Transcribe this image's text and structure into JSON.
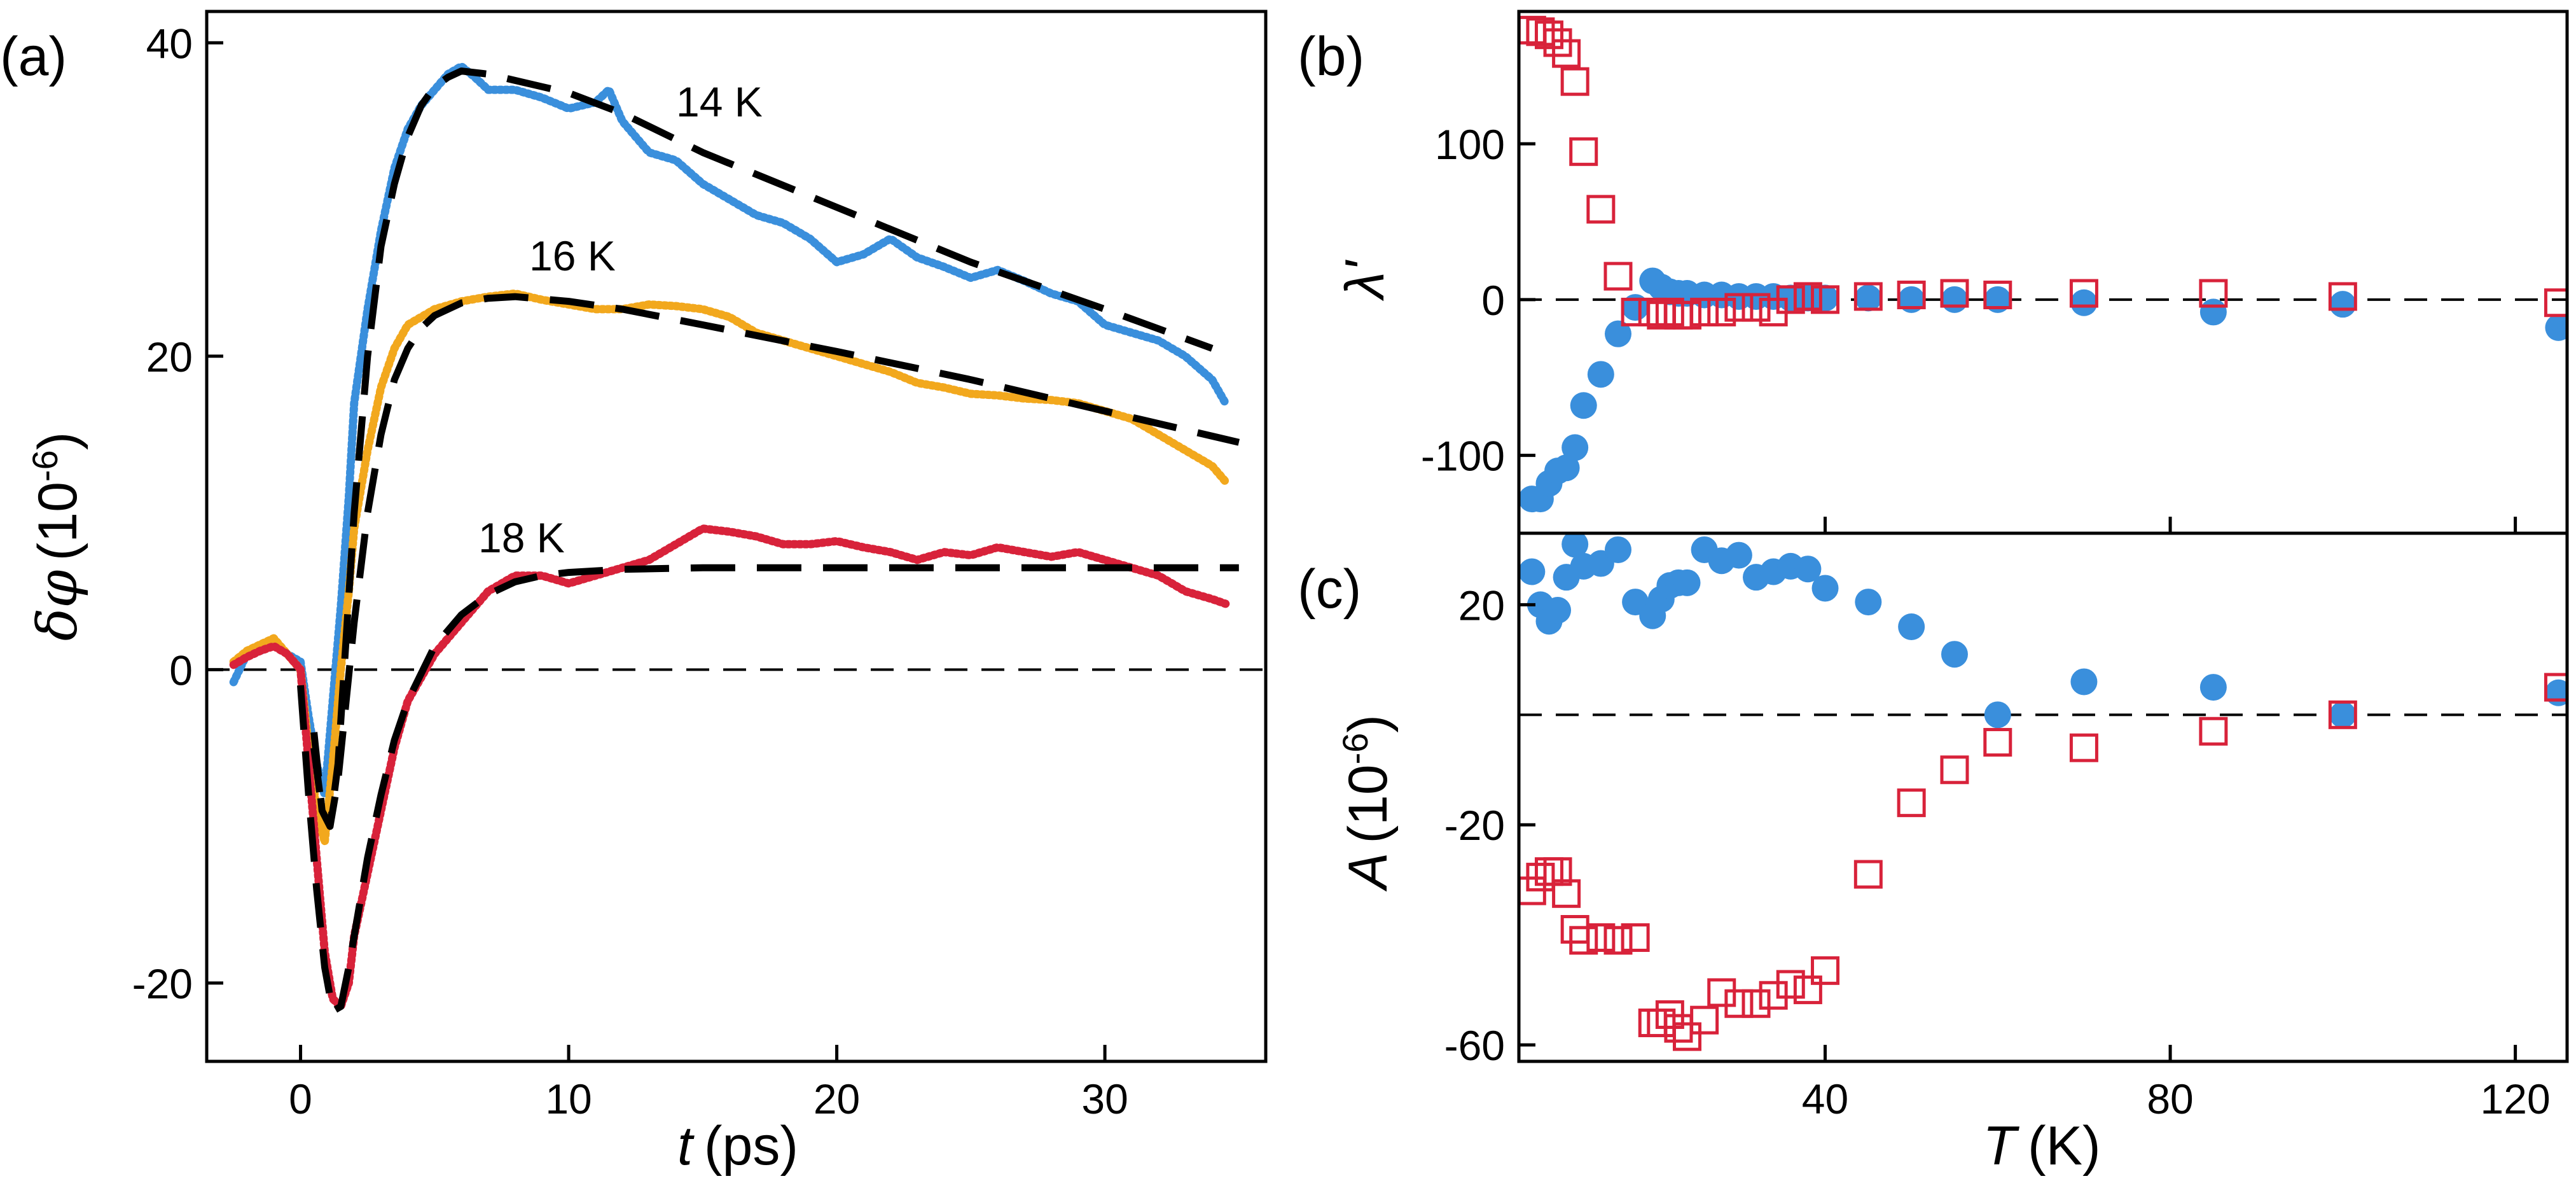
{
  "chart_data": [
    {
      "type": "line",
      "panel_label": "(a)",
      "xlabel": "t (ps)",
      "xlabel_var": "t",
      "xlabel_unit": "(ps)",
      "ylabel": "δφ (10⁻⁶)",
      "ylabel_var": "δφ",
      "ylabel_unit": "(10",
      "ylabel_exp": "-6",
      "ylabel_close": ")",
      "xlim": [
        -3.5,
        36
      ],
      "ylim": [
        -25,
        42
      ],
      "xticks": [
        0,
        10,
        20,
        30
      ],
      "yticks": [
        -20,
        0,
        20,
        40
      ],
      "xtick_labels": [
        "0",
        "10",
        "20",
        "30"
      ],
      "ytick_labels": [
        "-20",
        "0",
        "20",
        "40"
      ],
      "zero_line": true,
      "series": [
        {
          "name": "14 K",
          "color": "#3a8fdc",
          "x": [
            -2.5,
            -2,
            -1.5,
            -1,
            -0.5,
            0,
            0.3,
            0.6,
            0.9,
            1.2,
            1.5,
            1.8,
            2,
            2.5,
            3,
            3.5,
            4,
            4.5,
            5,
            5.5,
            6,
            6.5,
            7,
            8,
            9,
            10,
            11,
            11.5,
            12,
            13,
            14,
            15,
            16,
            17,
            18,
            19,
            20,
            21,
            22,
            23,
            24,
            25,
            26,
            27,
            28,
            29,
            30,
            31,
            32,
            33,
            34,
            34.5
          ],
          "y": [
            -0.8,
            1,
            1.2,
            1.6,
            1,
            0.5,
            -3,
            -6,
            -8,
            -2,
            4,
            11,
            17,
            23,
            28,
            32,
            34.5,
            36,
            37,
            38,
            38.5,
            37.8,
            37,
            37,
            36.5,
            35.8,
            36.2,
            37,
            35,
            33,
            32.5,
            31,
            30,
            29,
            28.5,
            27.5,
            26,
            26.5,
            27.5,
            26.3,
            25.7,
            25,
            25.5,
            24.8,
            24,
            23.5,
            22,
            21.5,
            21,
            20,
            18.5,
            17
          ]
        },
        {
          "name": "16 K",
          "color": "#f2a81d",
          "x": [
            -2.5,
            -2,
            -1.5,
            -1,
            -0.5,
            0,
            0.3,
            0.6,
            0.9,
            1.2,
            1.5,
            1.8,
            2,
            2.5,
            3,
            3.5,
            4,
            5,
            6,
            7,
            8,
            9,
            10,
            11,
            12,
            13,
            14,
            15,
            16,
            17,
            18,
            19,
            20,
            21,
            22,
            23,
            24,
            25,
            26,
            27,
            28,
            29,
            30,
            31,
            32,
            33,
            34,
            34.5
          ],
          "y": [
            0.5,
            1.2,
            1.6,
            2,
            1,
            0,
            -5,
            -9,
            -11,
            -6,
            0,
            5,
            9,
            14,
            18,
            20.5,
            22,
            23,
            23.5,
            23.8,
            24,
            23.6,
            23.3,
            23,
            23,
            23.3,
            23.2,
            23,
            22.5,
            21.5,
            21,
            20.5,
            20,
            19.5,
            19,
            18.3,
            18,
            17.6,
            17.5,
            17.3,
            17.2,
            17,
            16.5,
            16,
            15,
            14,
            13,
            12
          ]
        },
        {
          "name": "18 K",
          "color": "#d8223a",
          "x": [
            -2.5,
            -2,
            -1.5,
            -1,
            -0.5,
            0,
            0.3,
            0.6,
            0.9,
            1.2,
            1.5,
            1.8,
            2,
            2.5,
            3,
            3.5,
            4,
            4.5,
            5,
            6,
            7,
            8,
            9,
            10,
            11,
            12,
            13,
            14,
            15,
            16,
            17,
            18,
            19,
            20,
            21,
            22,
            23,
            24,
            25,
            26,
            27,
            28,
            29,
            30,
            31,
            32,
            33,
            34,
            34.5
          ],
          "y": [
            0.3,
            0.8,
            1.2,
            1.5,
            1,
            0,
            -6,
            -12,
            -18,
            -21,
            -21.5,
            -20,
            -17,
            -13,
            -9,
            -5,
            -2,
            -0.5,
            1,
            3,
            5,
            6,
            6,
            5.5,
            6,
            6.5,
            7,
            8,
            9,
            8.8,
            8.5,
            8,
            8,
            8.2,
            7.8,
            7.5,
            7,
            7.5,
            7.3,
            7.8,
            7.5,
            7.2,
            7.5,
            7,
            6.5,
            6,
            5,
            4.5,
            4.2
          ]
        },
        {
          "name": "fit 14 K",
          "color": "#000000",
          "dashed": true,
          "x": [
            0.5,
            0.8,
            1.1,
            1.4,
            1.7,
            2,
            2.5,
            3,
            3.5,
            4,
            4.5,
            5,
            5.5,
            6,
            7,
            8,
            9,
            10,
            12,
            15,
            20,
            25,
            30,
            34
          ],
          "y": [
            -4,
            -9,
            -10,
            -6,
            2,
            10,
            20,
            27,
            31,
            34,
            36,
            37.2,
            37.8,
            38.2,
            38,
            37.6,
            37.2,
            36.8,
            35.5,
            33,
            29.5,
            26,
            23,
            20.5
          ]
        },
        {
          "name": "fit 16 K",
          "color": "#000000",
          "dashed": true,
          "x": [
            0.5,
            0.8,
            1.1,
            1.4,
            1.7,
            2,
            2.5,
            3,
            3.5,
            4,
            4.5,
            5,
            6,
            7,
            8,
            10,
            12,
            15,
            20,
            25,
            30,
            35
          ],
          "y": [
            -5,
            -9,
            -10,
            -7,
            -2,
            3,
            10,
            15,
            18.5,
            20.5,
            21.8,
            22.6,
            23.4,
            23.7,
            23.8,
            23.5,
            23,
            22,
            20.3,
            18.5,
            16.5,
            14.5
          ]
        },
        {
          "name": "fit 18 K",
          "color": "#000000",
          "dashed": true,
          "x": [
            0,
            0.3,
            0.6,
            0.9,
            1.2,
            1.5,
            1.8,
            2.1,
            2.5,
            3,
            3.5,
            4,
            5,
            6,
            7,
            8,
            9,
            10,
            12,
            15,
            20,
            25,
            30,
            35
          ],
          "y": [
            -1,
            -8,
            -14,
            -19,
            -21.8,
            -21.5,
            -19,
            -16,
            -12,
            -8,
            -4.5,
            -2,
            1.5,
            3.5,
            4.8,
            5.6,
            6,
            6.2,
            6.4,
            6.5,
            6.5,
            6.5,
            6.5,
            6.5
          ]
        }
      ],
      "annotations": [
        "14 K",
        "16 K",
        "18 K"
      ]
    },
    {
      "type": "scatter",
      "panel_label": "(b)",
      "ylabel": "λ'",
      "xlim": [
        4.5,
        126
      ],
      "ylim": [
        -150,
        185
      ],
      "yticks": [
        -100,
        0,
        100
      ],
      "ytick_labels": [
        "-100",
        "0",
        "100"
      ],
      "zero_line": true,
      "series": [
        {
          "name": "filled circles",
          "color": "#3a8fdc",
          "marker": "circle",
          "x": [
            6,
            7,
            8,
            9,
            10,
            11,
            12,
            14,
            16,
            18,
            20,
            21,
            22,
            23,
            24,
            26,
            28,
            30,
            32,
            34,
            36,
            38,
            40,
            45,
            50,
            55,
            60,
            70,
            85,
            100,
            125
          ],
          "y": [
            -128,
            -128,
            -118,
            -110,
            -108,
            -95,
            -68,
            -48,
            -22,
            -5,
            12,
            8,
            5,
            4,
            4,
            3,
            3,
            2,
            2,
            2,
            1,
            1,
            1,
            1,
            0,
            0,
            0,
            -2,
            -8,
            -3,
            -18
          ]
        },
        {
          "name": "open squares",
          "color": "#d8223a",
          "marker": "square",
          "x": [
            6,
            7,
            8,
            9,
            10,
            11,
            12,
            14,
            16,
            18,
            20,
            21,
            22,
            23,
            24,
            26,
            28,
            30,
            32,
            34,
            36,
            38,
            40,
            45,
            50,
            55,
            60,
            70,
            85,
            100,
            125
          ],
          "y": [
            173,
            172,
            170,
            165,
            158,
            140,
            95,
            58,
            15,
            -8,
            -8,
            -10,
            -8,
            -10,
            -10,
            -8,
            -8,
            -5,
            -5,
            -8,
            0,
            2,
            0,
            2,
            3,
            4,
            3,
            4,
            4,
            2,
            -2
          ]
        }
      ]
    },
    {
      "type": "scatter",
      "panel_label": "(c)",
      "xlabel": "T (K)",
      "xlabel_var": "T",
      "xlabel_unit": "(K)",
      "ylabel": "A (10⁻⁶)",
      "ylabel_var": "A",
      "ylabel_unit": "(10",
      "ylabel_exp": "-6",
      "ylabel_close": ")",
      "xlim": [
        4.5,
        126
      ],
      "ylim": [
        -63,
        33
      ],
      "xticks": [
        40,
        80,
        120
      ],
      "xtick_labels": [
        "40",
        "80",
        "120"
      ],
      "yticks": [
        -60,
        -20,
        20
      ],
      "ytick_labels": [
        "-60",
        "-20",
        "20"
      ],
      "zero_line": true,
      "series": [
        {
          "name": "filled circles",
          "color": "#3a8fdc",
          "marker": "circle",
          "x": [
            6,
            7,
            8,
            9,
            10,
            11,
            12,
            14,
            16,
            18,
            20,
            21,
            22,
            23,
            24,
            26,
            28,
            30,
            32,
            34,
            36,
            38,
            40,
            45,
            50,
            55,
            60,
            70,
            85,
            100,
            125
          ],
          "y": [
            26,
            20,
            17,
            19,
            25,
            31,
            27,
            27.5,
            30,
            20.5,
            18,
            21,
            23.5,
            24,
            24,
            30,
            28,
            29,
            25,
            26,
            27,
            26.5,
            23,
            20.5,
            16,
            11,
            0,
            6,
            5,
            0,
            4
          ]
        },
        {
          "name": "open squares",
          "color": "#d8223a",
          "marker": "square",
          "x": [
            6,
            7,
            8,
            9,
            10,
            11,
            12,
            14,
            16,
            18,
            20,
            21,
            22,
            23,
            24,
            26,
            28,
            30,
            32,
            34,
            36,
            38,
            40,
            45,
            50,
            55,
            60,
            70,
            85,
            100,
            125
          ],
          "y": [
            -32,
            -29.5,
            -28.5,
            -28.5,
            -32.5,
            -39,
            -41,
            -40.5,
            -41,
            -40.5,
            -56,
            -56,
            -54.5,
            -57,
            -58.5,
            -55.5,
            -50.5,
            -52.5,
            -52.5,
            -51,
            -49,
            -50,
            -46.5,
            -29,
            -16,
            -10,
            -5,
            -6,
            -3,
            0,
            5
          ]
        }
      ]
    }
  ]
}
